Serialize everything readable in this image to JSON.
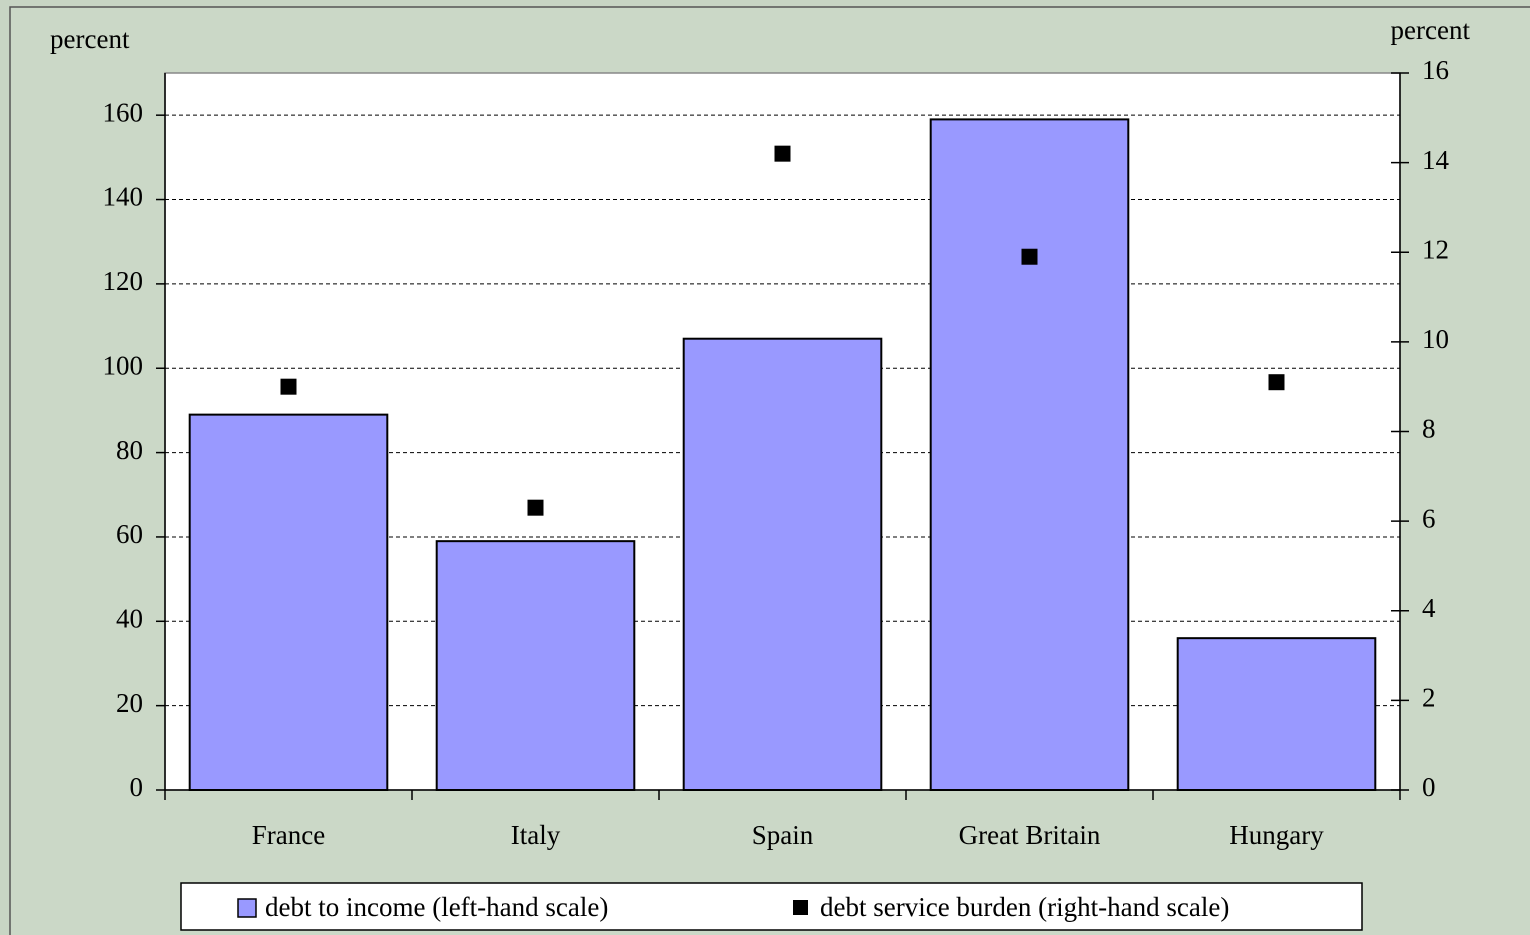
{
  "chart_data": {
    "type": "bar",
    "y_label": "percent",
    "y2_label": "percent",
    "categories": [
      "France",
      "Italy",
      "Spain",
      "Great Britain",
      "Hungary"
    ],
    "series": [
      {
        "name": "debt to income (left-hand scale)",
        "color": "#9999ff",
        "values": [
          89,
          59,
          107,
          159,
          36
        ]
      },
      {
        "name": "debt service burden (right-hand scale)",
        "color": "#000000",
        "axis": "y2",
        "marker": "square",
        "values": [
          9.0,
          6.3,
          14.2,
          11.9,
          9.1
        ]
      }
    ],
    "ylim": [
      0,
      170
    ],
    "yticks": [
      0,
      20,
      40,
      60,
      80,
      100,
      120,
      140,
      160
    ],
    "y2lim": [
      0,
      16
    ],
    "y2ticks": [
      0,
      2,
      4,
      6,
      8,
      10,
      12,
      14,
      16
    ],
    "grid": true,
    "legend": "bottom"
  }
}
